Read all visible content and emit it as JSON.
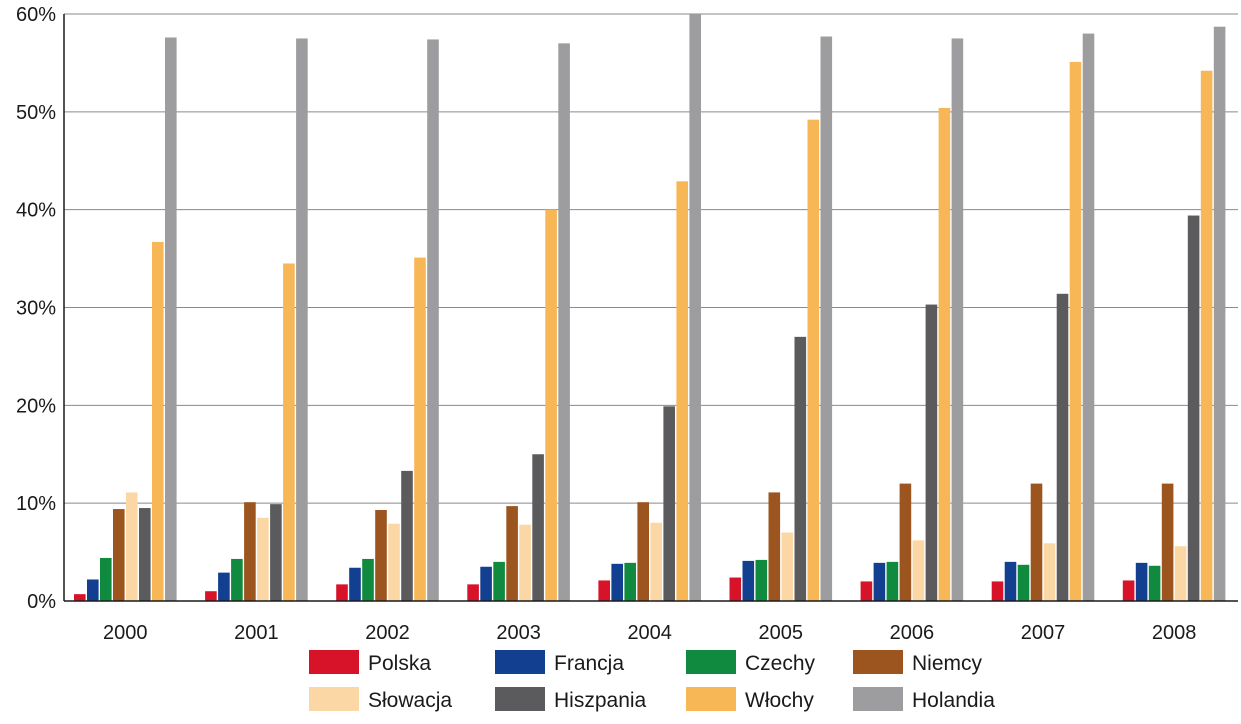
{
  "chart_data": {
    "type": "bar",
    "title": "",
    "xlabel": "",
    "ylabel": "",
    "ylim": [
      0,
      60
    ],
    "y_tick_values": [
      0,
      10,
      20,
      30,
      40,
      50,
      60
    ],
    "y_tick_labels": [
      "0%",
      "10%",
      "20%",
      "30%",
      "40%",
      "50%",
      "60%"
    ],
    "grid": "horizontal",
    "legend_position": "bottom",
    "categories": [
      "2000",
      "2001",
      "2002",
      "2003",
      "2004",
      "2005",
      "2006",
      "2007",
      "2008"
    ],
    "series": [
      {
        "name": "Polska",
        "color": "#d7132a",
        "values": [
          0.7,
          1.0,
          1.7,
          1.7,
          2.1,
          2.4,
          2.0,
          2.0,
          2.1
        ]
      },
      {
        "name": "Francja",
        "color": "#123f8f",
        "values": [
          2.2,
          2.9,
          3.4,
          3.5,
          3.8,
          4.1,
          3.9,
          4.0,
          3.9
        ]
      },
      {
        "name": "Czechy",
        "color": "#0f8a3e",
        "values": [
          4.4,
          4.3,
          4.3,
          4.0,
          3.9,
          4.2,
          4.0,
          3.7,
          3.6
        ]
      },
      {
        "name": "Niemcy",
        "color": "#9c551f",
        "values": [
          9.4,
          10.1,
          9.3,
          9.7,
          10.1,
          11.1,
          12.0,
          12.0,
          12.0
        ]
      },
      {
        "name": "Słowacja",
        "color": "#fcd7a6",
        "values": [
          11.1,
          8.5,
          7.9,
          7.8,
          8.0,
          7.0,
          6.2,
          5.9,
          5.6
        ]
      },
      {
        "name": "Hiszpania",
        "color": "#5b5b5d",
        "values": [
          9.5,
          9.9,
          13.3,
          15.0,
          19.9,
          27.0,
          30.3,
          31.4,
          39.4
        ]
      },
      {
        "name": "Włochy",
        "color": "#f8b756",
        "values": [
          36.7,
          34.5,
          35.1,
          40.0,
          42.9,
          49.2,
          50.4,
          55.1,
          54.2
        ]
      },
      {
        "name": "Holandia",
        "color": "#9d9d9f",
        "values": [
          57.6,
          57.5,
          57.4,
          57.0,
          60.0,
          57.7,
          57.5,
          58.0,
          58.7
        ]
      }
    ]
  }
}
